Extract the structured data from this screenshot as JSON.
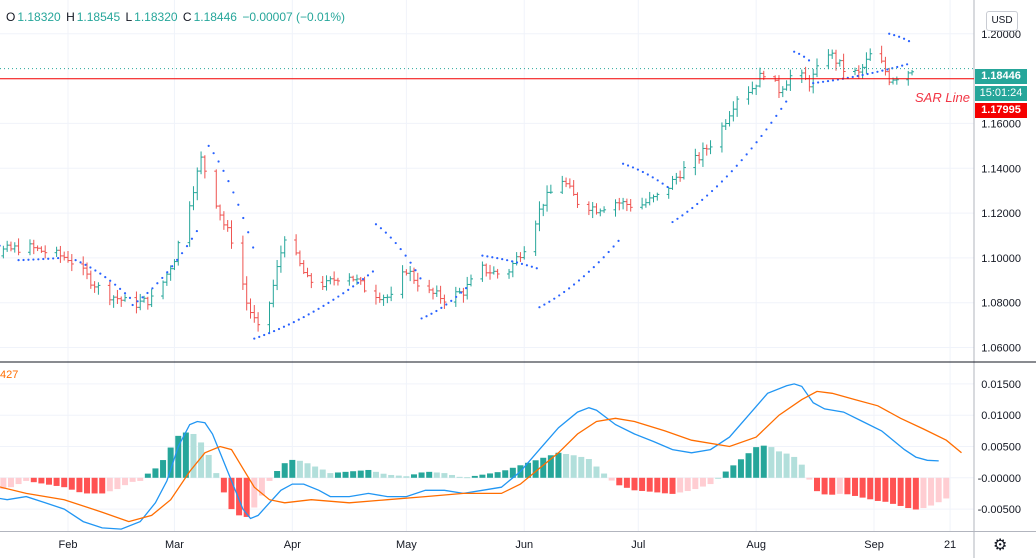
{
  "header": {
    "open_label": "O",
    "open": "1.18320",
    "high_label": "H",
    "high": "1.18545",
    "low_label": "L",
    "low": "1.18320",
    "close_label": "C",
    "close": "1.18446",
    "change": "−0.00007 (−0.01%)"
  },
  "currency_button": "USD",
  "price_tag": "1.18446",
  "time_tag": "15:01:24",
  "sar_tag": "1.17995",
  "sar_label": "SAR Line",
  "indicator_label": "427",
  "colors": {
    "up": "#26a69a",
    "down": "#ef5350",
    "sar_dots": "#2962ff",
    "macd": "#2196f3",
    "signal": "#ff6d00",
    "sar_line": "#f50000"
  },
  "chart_data": [
    {
      "type": "candlestick",
      "title": "",
      "y_ticks": [
        "1.20000",
        "1.18000",
        "1.16000",
        "1.14000",
        "1.12000",
        "1.10000",
        "1.08000",
        "1.06000"
      ],
      "ylim": [
        1.054,
        1.2115
      ],
      "x_ticks": [
        "Feb",
        "Mar",
        "Apr",
        "May",
        "Jun",
        "Jul",
        "Aug",
        "Sep",
        "21"
      ],
      "x_tick_days": [
        31,
        59,
        90,
        120,
        151,
        181,
        212,
        243,
        263
      ],
      "last_price": 1.18446,
      "sar_line_price": 1.17995,
      "close_keypoints": [
        [
          0,
          1.115
        ],
        [
          10,
          1.102
        ],
        [
          20,
          1.105
        ],
        [
          31,
          1.1
        ],
        [
          40,
          1.085
        ],
        [
          48,
          1.079
        ],
        [
          54,
          1.082
        ],
        [
          59,
          1.1
        ],
        [
          63,
          1.125
        ],
        [
          66,
          1.144
        ],
        [
          69,
          1.13
        ],
        [
          72,
          1.115
        ],
        [
          75,
          1.105
        ],
        [
          78,
          1.08
        ],
        [
          81,
          1.068
        ],
        [
          84,
          1.08
        ],
        [
          88,
          1.11
        ],
        [
          91,
          1.1
        ],
        [
          94,
          1.09
        ],
        [
          99,
          1.088
        ],
        [
          104,
          1.094
        ],
        [
          110,
          1.085
        ],
        [
          116,
          1.082
        ],
        [
          120,
          1.095
        ],
        [
          125,
          1.085
        ],
        [
          130,
          1.082
        ],
        [
          135,
          1.085
        ],
        [
          140,
          1.095
        ],
        [
          146,
          1.092
        ],
        [
          151,
          1.105
        ],
        [
          156,
          1.125
        ],
        [
          161,
          1.135
        ],
        [
          165,
          1.125
        ],
        [
          170,
          1.122
        ],
        [
          175,
          1.125
        ],
        [
          181,
          1.123
        ],
        [
          187,
          1.128
        ],
        [
          192,
          1.138
        ],
        [
          197,
          1.145
        ],
        [
          202,
          1.155
        ],
        [
          207,
          1.172
        ],
        [
          211,
          1.176
        ],
        [
          214,
          1.183
        ],
        [
          218,
          1.175
        ],
        [
          222,
          1.183
        ],
        [
          226,
          1.178
        ],
        [
          231,
          1.192
        ],
        [
          235,
          1.184
        ],
        [
          239,
          1.182
        ],
        [
          243,
          1.193
        ],
        [
          247,
          1.18
        ],
        [
          251,
          1.182
        ],
        [
          253,
          1.1845
        ]
      ],
      "sar_segments": [
        {
          "from": [
            0,
            1.119
          ],
          "to": [
            14,
            1.104
          ]
        },
        {
          "from": [
            18,
            1.099
          ],
          "to": [
            29,
            1.1
          ]
        },
        {
          "from": [
            33,
            1.099
          ],
          "to": [
            48,
            1.081
          ]
        },
        {
          "from": [
            48,
            1.079
          ],
          "to": [
            66,
            1.115
          ]
        },
        {
          "from": [
            68,
            1.15
          ],
          "to": [
            80,
            1.103
          ]
        },
        {
          "from": [
            80,
            1.064
          ],
          "to": [
            112,
            1.095
          ]
        },
        {
          "from": [
            112,
            1.115
          ],
          "to": [
            124,
            1.09
          ]
        },
        {
          "from": [
            124,
            1.073
          ],
          "to": [
            136,
            1.087
          ]
        },
        {
          "from": [
            140,
            1.101
          ],
          "to": [
            155,
            1.095
          ]
        },
        {
          "from": [
            155,
            1.078
          ],
          "to": [
            177,
            1.11
          ]
        },
        {
          "from": [
            177,
            1.142
          ],
          "to": [
            190,
            1.13
          ]
        },
        {
          "from": [
            190,
            1.116
          ],
          "to": [
            220,
            1.17
          ]
        },
        {
          "from": [
            222,
            1.192
          ],
          "to": [
            226,
            1.188
          ]
        },
        {
          "from": [
            227,
            1.178
          ],
          "to": [
            253,
            1.187
          ]
        },
        {
          "from": [
            247,
            1.2
          ],
          "to": [
            253,
            1.196
          ]
        }
      ]
    },
    {
      "type": "macd",
      "title": "",
      "y_ticks": [
        "0.01500",
        "0.01000",
        "0.00500",
        "-0.00000",
        "-0.00500"
      ],
      "ylim": [
        -0.0085,
        0.0185
      ],
      "macd": [
        [
          0,
          -0.001
        ],
        [
          5,
          -0.0015
        ],
        [
          10,
          -0.003
        ],
        [
          15,
          -0.0035
        ],
        [
          20,
          -0.003
        ],
        [
          25,
          -0.004
        ],
        [
          30,
          -0.005
        ],
        [
          35,
          -0.007
        ],
        [
          40,
          -0.008
        ],
        [
          45,
          -0.0082
        ],
        [
          50,
          -0.007
        ],
        [
          54,
          -0.004
        ],
        [
          57,
          -0.0005
        ],
        [
          60,
          0.005
        ],
        [
          63,
          0.0085
        ],
        [
          65,
          0.009
        ],
        [
          67,
          0.0088
        ],
        [
          69,
          0.007
        ],
        [
          71,
          0.004
        ],
        [
          73,
          0.001
        ],
        [
          75,
          -0.002
        ],
        [
          77,
          -0.005
        ],
        [
          79,
          -0.0065
        ],
        [
          81,
          -0.006
        ],
        [
          84,
          -0.004
        ],
        [
          87,
          -0.002
        ],
        [
          90,
          -0.001
        ],
        [
          93,
          -0.001
        ],
        [
          97,
          -0.002
        ],
        [
          100,
          -0.003
        ],
        [
          105,
          -0.003
        ],
        [
          110,
          -0.0025
        ],
        [
          115,
          -0.003
        ],
        [
          120,
          -0.003
        ],
        [
          125,
          -0.002
        ],
        [
          130,
          -0.002
        ],
        [
          135,
          -0.0025
        ],
        [
          140,
          -0.002
        ],
        [
          145,
          -0.0015
        ],
        [
          150,
          0.001
        ],
        [
          155,
          0.0045
        ],
        [
          160,
          0.008
        ],
        [
          165,
          0.0105
        ],
        [
          168,
          0.0112
        ],
        [
          170,
          0.0108
        ],
        [
          175,
          0.0085
        ],
        [
          180,
          0.007
        ],
        [
          185,
          0.0058
        ],
        [
          190,
          0.0045
        ],
        [
          195,
          0.004
        ],
        [
          200,
          0.0045
        ],
        [
          205,
          0.0065
        ],
        [
          210,
          0.01
        ],
        [
          215,
          0.0135
        ],
        [
          220,
          0.0147
        ],
        [
          222,
          0.015
        ],
        [
          224,
          0.0146
        ],
        [
          227,
          0.012
        ],
        [
          230,
          0.011
        ],
        [
          235,
          0.0105
        ],
        [
          240,
          0.009
        ],
        [
          245,
          0.0075
        ],
        [
          248,
          0.006
        ],
        [
          251,
          0.0045
        ],
        [
          254,
          0.0033
        ],
        [
          257,
          0.0028
        ],
        [
          260,
          0.0027
        ]
      ],
      "signal": [
        [
          0,
          0.001
        ],
        [
          10,
          -0.001
        ],
        [
          20,
          -0.0025
        ],
        [
          30,
          -0.0035
        ],
        [
          40,
          -0.0055
        ],
        [
          47,
          -0.007
        ],
        [
          53,
          -0.006
        ],
        [
          58,
          -0.0035
        ],
        [
          63,
          0.001
        ],
        [
          67,
          0.004
        ],
        [
          71,
          0.005
        ],
        [
          74,
          0.0045
        ],
        [
          77,
          0.0015
        ],
        [
          80,
          -0.0015
        ],
        [
          84,
          -0.0035
        ],
        [
          88,
          -0.004
        ],
        [
          95,
          -0.0035
        ],
        [
          105,
          -0.004
        ],
        [
          115,
          -0.0035
        ],
        [
          125,
          -0.003
        ],
        [
          135,
          -0.0025
        ],
        [
          145,
          -0.0025
        ],
        [
          150,
          -0.001
        ],
        [
          155,
          0.0015
        ],
        [
          160,
          0.004
        ],
        [
          165,
          0.007
        ],
        [
          170,
          0.009
        ],
        [
          175,
          0.0095
        ],
        [
          180,
          0.009
        ],
        [
          188,
          0.0075
        ],
        [
          195,
          0.006
        ],
        [
          205,
          0.005
        ],
        [
          212,
          0.0065
        ],
        [
          218,
          0.01
        ],
        [
          224,
          0.0125
        ],
        [
          228,
          0.0138
        ],
        [
          232,
          0.0135
        ],
        [
          238,
          0.0125
        ],
        [
          244,
          0.0115
        ],
        [
          250,
          0.0095
        ],
        [
          256,
          0.0078
        ],
        [
          262,
          0.006
        ],
        [
          266,
          0.004
        ]
      ]
    }
  ]
}
